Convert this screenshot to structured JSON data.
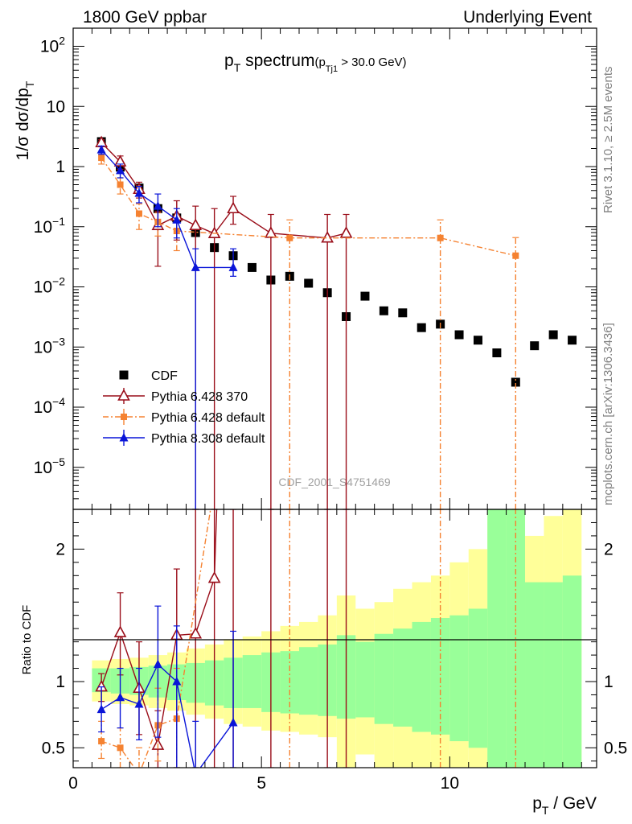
{
  "header": {
    "left": "1800 GeV ppbar",
    "right": "Underlying Event"
  },
  "side": {
    "rivet": "Rivet 3.1.10, ≥ 2.5M events",
    "mcplots": "mcplots.cern.ch [arXiv:1306.3436]"
  },
  "watermark": "CDF_2001_S4751469",
  "title": {
    "main": "p",
    "main_sub": "T",
    "main_rest": " spectrum",
    "cut_open": "(p",
    "cut_sub": "Tj1",
    "cut_rest": " > 30.0 GeV)"
  },
  "chart_data": {
    "type": "scatter",
    "xlabel": "p_T / GeV",
    "ylabel_main": "1/σ dσ/dp_T",
    "ylabel_ratio": "Ratio to CDF",
    "xlim": [
      0,
      13.9
    ],
    "ylim_main": [
      2e-06,
      200
    ],
    "ylim_ratio": [
      0.35,
      2.3
    ],
    "yscale_main": "log",
    "x_ticks": [
      "0",
      "5",
      "10"
    ],
    "y_ticks_main": [
      "10^2",
      "10",
      "1",
      "10^-1",
      "10^-2",
      "10^-3",
      "10^-4",
      "10^-5"
    ],
    "y_ticks_ratio": [
      "0.5",
      "1",
      "2"
    ],
    "legend_position": "lower-left",
    "colors": {
      "cdf": "#000000",
      "py6_370": "#9a0e1a",
      "py6_default": "#f58231",
      "py8_default": "#0a15d8",
      "band_inner": "#99ff99",
      "band_outer": "#ffff99"
    },
    "series": [
      {
        "name": "CDF",
        "key": "cdf",
        "marker": "square",
        "x": [
          0.75,
          1.25,
          1.75,
          2.25,
          2.75,
          3.25,
          3.75,
          4.25,
          4.75,
          5.25,
          5.75,
          6.25,
          6.75,
          7.25,
          7.75,
          8.25,
          8.75,
          9.25,
          9.75,
          10.25,
          10.75,
          11.25,
          11.75,
          12.25,
          12.75,
          13.25
        ],
        "y": [
          2.6,
          0.98,
          0.44,
          0.2,
          0.14,
          0.08,
          0.045,
          0.033,
          0.021,
          0.013,
          0.015,
          0.0115,
          0.008,
          0.0032,
          0.007,
          0.004,
          0.0037,
          0.0021,
          0.0024,
          0.0016,
          0.0013,
          0.0008,
          0.00026,
          0.00105,
          0.0016,
          0.0013
        ]
      },
      {
        "name": "Pythia 6.428 370",
        "key": "py6_370",
        "marker": "triangle-open",
        "line": "solid",
        "x": [
          0.75,
          1.25,
          1.75,
          2.25,
          2.75,
          3.25,
          3.75,
          4.25,
          5.25,
          6.75,
          7.25
        ],
        "y": [
          2.5,
          1.2,
          0.42,
          0.105,
          0.15,
          0.105,
          0.077,
          0.2,
          0.078,
          0.065,
          0.078
        ],
        "ylo": [
          2.2,
          0.9,
          0.3,
          0.022,
          0.06,
          2e-06,
          2e-06,
          0.11,
          2e-06,
          2e-06,
          2e-06
        ],
        "yhi": [
          2.8,
          1.5,
          0.55,
          0.18,
          0.27,
          0.22,
          0.2,
          0.32,
          0.16,
          0.16,
          0.16
        ],
        "ratio": [
          0.96,
          1.37,
          0.95,
          0.52,
          1.35,
          1.36,
          1.78,
          6.0,
          6.0,
          6.0,
          6.0
        ],
        "ratio_lo": [
          0.85,
          1.05,
          0.6,
          0.35,
          0.35,
          0.35,
          0.35,
          0.35,
          0.35,
          0.35,
          0.35
        ],
        "ratio_hi": [
          1.06,
          1.67,
          1.3,
          0.78,
          1.85,
          2.3,
          2.3,
          2.3,
          2.3,
          2.3,
          2.3
        ]
      },
      {
        "name": "Pythia 6.428 default",
        "key": "py6_default",
        "marker": "square-small",
        "line": "dashdot",
        "x": [
          0.75,
          1.25,
          1.75,
          2.25,
          2.75,
          5.75,
          9.75,
          11.75
        ],
        "y": [
          1.4,
          0.5,
          0.165,
          0.12,
          0.085,
          0.065,
          0.065,
          0.033
        ],
        "ylo": [
          1.1,
          0.35,
          0.09,
          0.07,
          0.04,
          2e-06,
          2e-06,
          2e-06
        ],
        "yhi": [
          1.7,
          0.65,
          0.24,
          0.17,
          0.13,
          0.13,
          0.13,
          0.066
        ],
        "ratio": [
          0.55,
          0.5,
          0.3,
          0.67,
          0.72,
          6.0,
          6.0,
          6.0
        ],
        "ratio_lo": [
          0.42,
          0.35,
          0.35,
          0.4,
          0.35,
          0.35,
          0.35,
          0.35
        ],
        "ratio_hi": [
          0.7,
          0.65,
          0.5,
          0.95,
          1.1,
          2.3,
          2.3,
          2.3
        ]
      },
      {
        "name": "Pythia 8.308 default",
        "key": "py8_default",
        "marker": "triangle-filled",
        "line": "solid",
        "x": [
          0.75,
          1.25,
          1.75,
          2.25,
          2.75,
          3.25,
          4.25
        ],
        "y": [
          1.9,
          0.86,
          0.36,
          0.22,
          0.13,
          0.021,
          0.021
        ],
        "ylo": [
          1.6,
          0.65,
          0.25,
          0.1,
          0.065,
          2e-06,
          0.015
        ],
        "yhi": [
          2.2,
          1.1,
          0.47,
          0.35,
          0.2,
          0.043,
          0.043
        ],
        "ratio": [
          0.79,
          0.88,
          0.83,
          1.13,
          1.0,
          0.3,
          0.69
        ],
        "ratio_lo": [
          0.62,
          0.65,
          0.56,
          0.58,
          0.35,
          0.35,
          0.35
        ],
        "ratio_hi": [
          0.96,
          1.1,
          1.1,
          1.57,
          1.42,
          0.7,
          1.38
        ]
      }
    ],
    "bands": {
      "x_edges": [
        0.5,
        1.0,
        1.5,
        2.0,
        2.5,
        3.0,
        3.5,
        4.0,
        4.5,
        5.0,
        5.5,
        6.0,
        6.5,
        7.0,
        7.5,
        8.0,
        8.5,
        9.0,
        9.5,
        10.0,
        10.5,
        11.0,
        11.5,
        12.0,
        12.5,
        13.0,
        13.5
      ],
      "inner_lo": [
        0.92,
        0.91,
        0.9,
        0.88,
        0.86,
        0.84,
        0.82,
        0.8,
        0.8,
        0.77,
        0.76,
        0.75,
        0.74,
        0.72,
        0.73,
        0.68,
        0.66,
        0.62,
        0.6,
        0.55,
        0.5,
        0.35,
        0.35,
        0.35,
        0.35,
        0.35
      ],
      "inner_hi": [
        1.1,
        1.1,
        1.11,
        1.12,
        1.13,
        1.14,
        1.16,
        1.18,
        1.2,
        1.22,
        1.23,
        1.26,
        1.28,
        1.35,
        1.3,
        1.36,
        1.4,
        1.45,
        1.48,
        1.5,
        1.55,
        2.3,
        2.3,
        1.75,
        1.75,
        1.8
      ],
      "outer_lo": [
        0.85,
        0.83,
        0.82,
        0.8,
        0.78,
        0.75,
        0.72,
        0.68,
        0.66,
        0.63,
        0.62,
        0.6,
        0.58,
        0.35,
        0.45,
        0.35,
        0.35,
        0.35,
        0.35,
        0.35,
        0.35,
        0.35,
        0.35,
        0.35,
        0.4,
        0.35
      ],
      "outer_hi": [
        1.16,
        1.17,
        1.18,
        1.2,
        1.22,
        1.25,
        1.28,
        1.32,
        1.34,
        1.38,
        1.42,
        1.45,
        1.5,
        1.65,
        1.55,
        1.6,
        1.7,
        1.75,
        1.8,
        1.9,
        2.0,
        2.3,
        2.3,
        2.1,
        2.25,
        2.3
      ]
    }
  }
}
